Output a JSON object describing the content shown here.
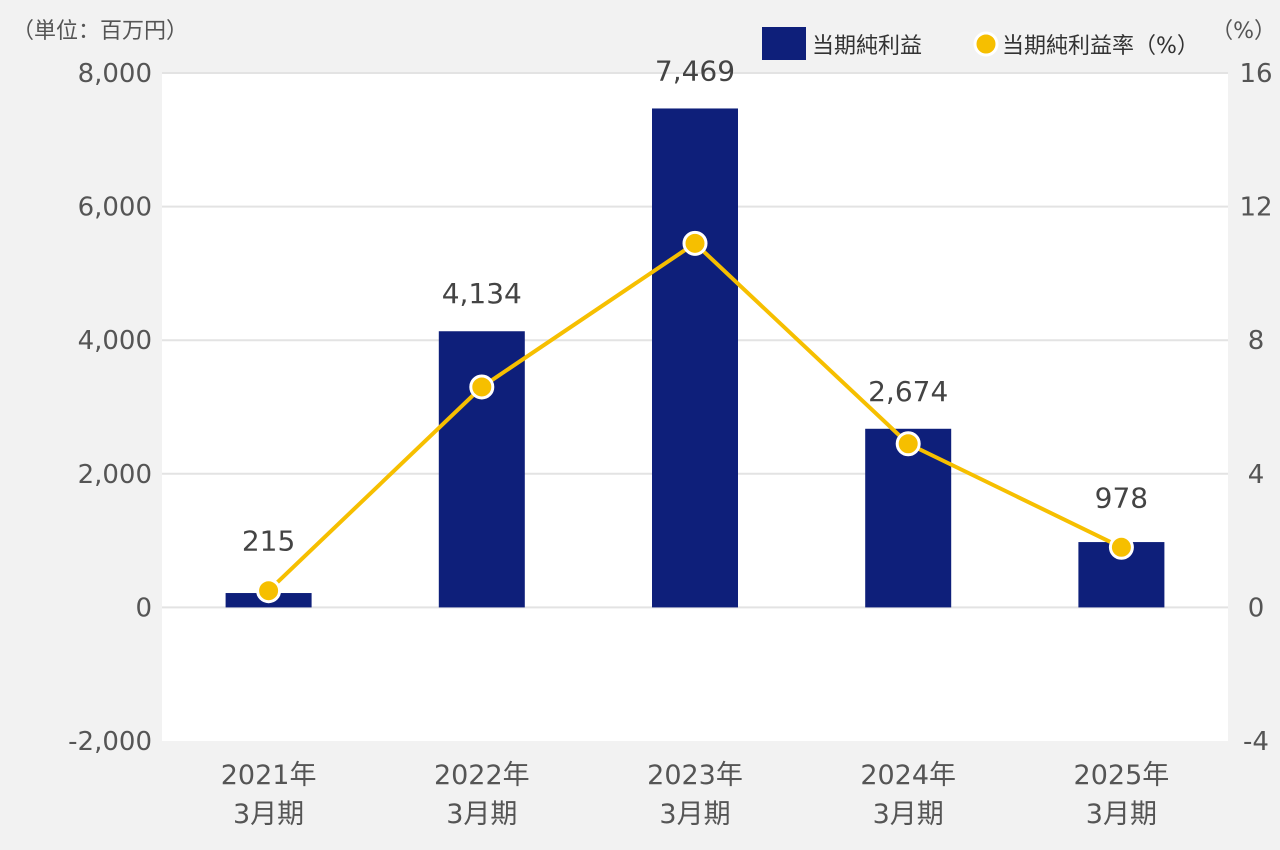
{
  "units": {
    "left": "（単位：百万円）",
    "right": "（%）"
  },
  "legend": {
    "bar_label": "当期純利益",
    "line_label": "当期純利益率（%）"
  },
  "colors": {
    "bar": "#0e1f7a",
    "line": "#f6bf00",
    "background": "#f2f2f2",
    "plot": "#ffffff",
    "grid": "#e3e3e3"
  },
  "chart_data": {
    "type": "bar",
    "title": "",
    "categories": [
      [
        "2021年",
        "3月期"
      ],
      [
        "2022年",
        "3月期"
      ],
      [
        "2023年",
        "3月期"
      ],
      [
        "2024年",
        "3月期"
      ],
      [
        "2025年",
        "3月期"
      ]
    ],
    "series": [
      {
        "name": "当期純利益",
        "type": "bar",
        "axis": "left",
        "values": [
          215,
          4134,
          7469,
          2674,
          978
        ],
        "labels": [
          "215",
          "4,134",
          "7,469",
          "2,674",
          "978"
        ]
      },
      {
        "name": "当期純利益率（%）",
        "type": "line",
        "axis": "right",
        "values": [
          0.5,
          6.6,
          10.9,
          4.9,
          1.8
        ]
      }
    ],
    "y_left": {
      "min": -2000,
      "max": 8000,
      "ticks": [
        -2000,
        0,
        2000,
        4000,
        6000,
        8000
      ],
      "tick_labels": [
        "-2,000",
        "0",
        "2,000",
        "4,000",
        "6,000",
        "8,000"
      ]
    },
    "y_right": {
      "min": -4,
      "max": 16,
      "ticks": [
        -4,
        0,
        4,
        8,
        12,
        16
      ],
      "tick_labels": [
        "-4",
        "0",
        "4",
        "8",
        "12",
        "16"
      ]
    },
    "grid": true,
    "legend_position": "top-right"
  }
}
